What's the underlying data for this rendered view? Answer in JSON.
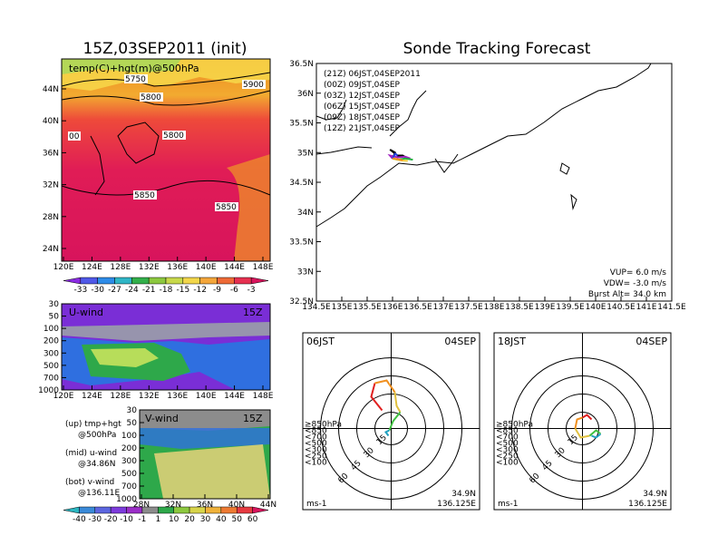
{
  "titles": {
    "init": "15Z,03SEP2011 (init)",
    "main": "Sonde Tracking Forecast"
  },
  "panels": {
    "temp_map": {
      "label": "temp(C)+hgt(m)@500hPa",
      "contour_labels": [
        "5750",
        "5800",
        "5900",
        "5800",
        "5850",
        "5850",
        "00"
      ],
      "x_ticks": [
        "120E",
        "124E",
        "128E",
        "132E",
        "136E",
        "140E",
        "144E",
        "148E"
      ],
      "y_ticks": [
        "44N",
        "40N",
        "36N",
        "32N",
        "28N",
        "24N"
      ],
      "colorbar": {
        "labels": [
          "-33",
          "-30",
          "-27",
          "-24",
          "-21",
          "-18",
          "-15",
          "-12",
          "-9",
          "-6",
          "-3"
        ],
        "colors": [
          "#8a2be2",
          "#4f58e8",
          "#2d8ce8",
          "#2fb6c6",
          "#32b04a",
          "#8cc83e",
          "#c8d94a",
          "#f2d64a",
          "#f4a63a",
          "#ee6a36",
          "#e63050",
          "#d8145c"
        ]
      }
    },
    "u_wind": {
      "label": "U-wind",
      "time": "15Z",
      "x_ticks": [
        "120E",
        "124E",
        "128E",
        "132E",
        "136E",
        "140E",
        "144E",
        "148E"
      ],
      "y_ticks": [
        "30",
        "50",
        "100",
        "200",
        "300",
        "500",
        "700",
        "1000"
      ]
    },
    "v_wind": {
      "label": "V-wind",
      "time": "15Z",
      "x_ticks": [
        "28N",
        "32N",
        "36N",
        "40N",
        "44N"
      ],
      "y_ticks": [
        "30",
        "50",
        "100",
        "200",
        "300",
        "500",
        "700",
        "1000"
      ],
      "colorbar": {
        "labels": [
          "-40",
          "-30",
          "-20",
          "-10",
          "-1",
          "1",
          "10",
          "20",
          "30",
          "40",
          "50",
          "60"
        ],
        "colors": [
          "#2bb5c0",
          "#3a8ad9",
          "#5c66e0",
          "#7d3bdc",
          "#9b2ec8",
          "#8c8c8c",
          "#2ea84a",
          "#8cc83e",
          "#d8d44a",
          "#f0b23a",
          "#ee7a32",
          "#e63a40",
          "#d8145c"
        ]
      }
    }
  },
  "notes": {
    "up_1": "(up) tmp+hgt",
    "up_2": "@500hPa",
    "mid_1": "(mid) u-wind",
    "mid_2": "@34.86N",
    "bot_1": "(bot) v-wind",
    "bot_2": "@136.11E"
  },
  "sonde_map": {
    "launches": [
      {
        "text": "(21Z) 06JST,04SEP2011",
        "color": "#000000"
      },
      {
        "text": "(00Z) 09JST,04SEP",
        "color": "#a020c0"
      },
      {
        "text": "(03Z) 12JST,04SEP",
        "color": "#2040e0"
      },
      {
        "text": "(06Z) 15JST,04SEP",
        "color": "#20b040"
      },
      {
        "text": "(09Z) 18JST,04SEP",
        "color": "#f0d040"
      },
      {
        "text": "(12Z) 21JST,04SEP",
        "color": "#f09020"
      }
    ],
    "x_ticks": [
      "134.5E",
      "135E",
      "135.5E",
      "136E",
      "136.5E",
      "137E",
      "137.5E",
      "138E",
      "138.5E",
      "139E",
      "139.5E",
      "140E",
      "140.5E",
      "141E",
      "141.5E"
    ],
    "y_ticks": [
      "36.5N",
      "36N",
      "35.5N",
      "35N",
      "34.5N",
      "34N",
      "33.5N",
      "33N",
      "32.5N"
    ],
    "vup": "VUP= 6.0 m/s",
    "vdw": "VDW= -3.0 m/s",
    "burst": "Burst Alt= 34.0 km"
  },
  "hodographs": [
    {
      "time": "06JST",
      "date": "04SEP",
      "rings": [
        "15",
        "30",
        "45",
        "60"
      ],
      "units": "ms-1",
      "lat": "34.9N",
      "lon": "136.125E",
      "legend": [
        "≥850hPa",
        "<850",
        "<700",
        "<500",
        "<300",
        "<250",
        "<100"
      ],
      "legend_colors": [
        "#e02020",
        "#f09020",
        "#e0c040",
        "#40c040",
        "#20a0c0",
        "#2060e0",
        "#4040d0"
      ]
    },
    {
      "time": "18JST",
      "date": "04SEP",
      "rings": [
        "15",
        "30",
        "45",
        "60"
      ],
      "units": "ms-1",
      "lat": "34.9N",
      "lon": "136.125E",
      "legend": [
        "≥850hPa",
        "<850",
        "<700",
        "<500",
        "<300",
        "<250",
        "<100"
      ],
      "legend_colors": [
        "#e02020",
        "#f09020",
        "#e0c040",
        "#40c040",
        "#20a0c0",
        "#2060e0",
        "#4040d0"
      ]
    }
  ],
  "chart_data": [
    {
      "type": "heatmap",
      "title": "15Z,03SEP2011 (init)",
      "subtitle": "temp(C)+hgt(m)@500hPa",
      "xlim": [
        "120E",
        "150E"
      ],
      "ylim": [
        "22N",
        "47N"
      ],
      "colorbar_levels": [
        -33,
        -30,
        -27,
        -24,
        -21,
        -18,
        -15,
        -12,
        -9,
        -6,
        -3
      ],
      "contours": [
        5750,
        5800,
        5850,
        5900
      ]
    },
    {
      "type": "line",
      "title": "Sonde Tracking Forecast",
      "xlim": [
        134.5,
        141.5
      ],
      "ylim": [
        32.5,
        36.5
      ],
      "series": [
        {
          "name": "(21Z) 06JST,04SEP2011",
          "x": [
            136.0,
            136.05,
            135.95,
            136.1,
            136.2,
            136.3
          ],
          "y": [
            34.9,
            35.0,
            35.05,
            34.95,
            34.95,
            34.9
          ]
        },
        {
          "name": "(00Z) 09JST,04SEP",
          "x": [
            136.0,
            135.95,
            136.1,
            136.25,
            136.35
          ],
          "y": [
            34.9,
            34.95,
            34.92,
            34.93,
            34.9
          ]
        },
        {
          "name": "(03Z) 12JST,04SEP",
          "x": [
            136.0,
            136.05,
            136.1
          ],
          "y": [
            34.9,
            34.98,
            34.95
          ]
        },
        {
          "name": "(06Z) 15JST,04SEP",
          "x": [
            136.0,
            136.1,
            136.25,
            136.4
          ],
          "y": [
            34.9,
            34.88,
            34.9,
            34.88
          ]
        },
        {
          "name": "(09Z) 18JST,04SEP",
          "x": [
            136.0,
            136.15,
            136.3
          ],
          "y": [
            34.9,
            34.87,
            34.86
          ]
        },
        {
          "name": "(12Z) 21JST,04SEP",
          "x": [
            136.0,
            136.1,
            136.2
          ],
          "y": [
            34.9,
            34.89,
            34.87
          ]
        }
      ]
    }
  ]
}
